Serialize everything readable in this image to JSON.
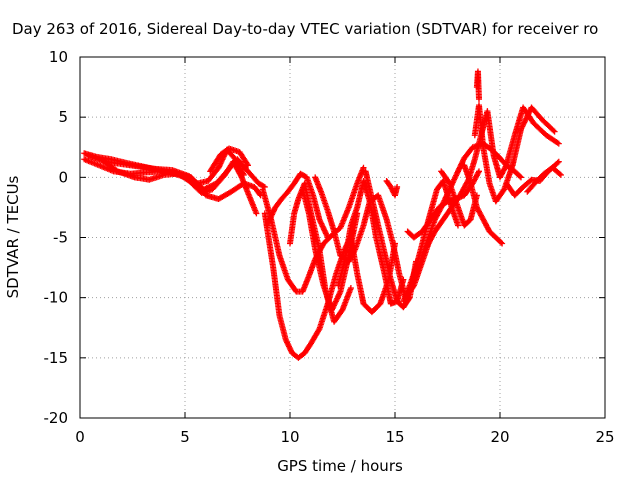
{
  "chart_data": {
    "type": "scatter",
    "title": "Day 263 of 2016, Sidereal Day-to-day VTEC variation (SDTVAR) for receiver ro",
    "xlabel": "GPS time / hours",
    "ylabel": "SDTVAR / TECUs",
    "xlim": [
      0,
      25
    ],
    "ylim": [
      -20,
      10
    ],
    "xticks": [
      0,
      5,
      10,
      15,
      20,
      25
    ],
    "yticks": [
      -20,
      -15,
      -10,
      -5,
      0,
      5,
      10
    ],
    "xtick_labels": [
      "0",
      "5",
      "10",
      "15",
      "20",
      "25"
    ],
    "ytick_labels": [
      "-20",
      "-15",
      "-10",
      "-5",
      "0",
      "5",
      "10"
    ],
    "grid": true,
    "marker": "plus",
    "color": "#ff0000",
    "series": [
      {
        "x": [
          0.2,
          0.8,
          1.5,
          2.2,
          3.0,
          3.8,
          4.5,
          5.0,
          5.6,
          6.1,
          6.6,
          7.0,
          7.4,
          7.8
        ],
        "y": [
          2.0,
          1.7,
          1.5,
          1.2,
          0.9,
          0.6,
          0.3,
          0.0,
          -0.5,
          -0.3,
          0.8,
          2.3,
          1.5,
          0.2
        ]
      },
      {
        "x": [
          0.2,
          0.9,
          1.6,
          2.4,
          3.1,
          3.9,
          4.6,
          5.2,
          5.8,
          6.3,
          6.9,
          7.3,
          7.7,
          8.0,
          8.4
        ],
        "y": [
          1.5,
          1.0,
          0.5,
          0.3,
          0.4,
          0.5,
          0.4,
          -0.3,
          -1.3,
          -1.0,
          0.2,
          1.3,
          0.0,
          -1.3,
          -3.0
        ]
      },
      {
        "x": [
          0.4,
          1.2,
          2.0,
          2.8,
          3.6,
          4.4,
          5.2,
          5.9,
          6.5,
          7.0,
          7.5,
          8.0,
          8.5,
          8.8
        ],
        "y": [
          1.8,
          1.3,
          1.1,
          0.9,
          0.7,
          0.6,
          0.1,
          -1.0,
          -0.5,
          0.5,
          1.5,
          0.5,
          -0.5,
          -0.8
        ]
      },
      {
        "x": [
          1.0,
          1.8,
          2.6,
          3.3,
          4.0,
          4.6,
          5.3,
          6.0,
          6.6,
          7.2,
          7.8,
          8.3,
          8.6
        ],
        "y": [
          1.5,
          0.5,
          0.0,
          -0.2,
          0.2,
          0.3,
          0.0,
          -1.5,
          -1.8,
          -1.2,
          -0.5,
          -0.8,
          -1.5
        ]
      },
      {
        "x": [
          6.2,
          6.7,
          7.1,
          7.6,
          8.0
        ],
        "y": [
          0.5,
          1.9,
          2.4,
          2.1,
          1.0
        ]
      },
      {
        "x": [
          8.8,
          9.2,
          9.5,
          9.8,
          10.1,
          10.4,
          10.7,
          11.0,
          11.4,
          11.8,
          12.2,
          12.6,
          13.0
        ],
        "y": [
          -3.0,
          -7.5,
          -11.5,
          -13.5,
          -14.6,
          -15.0,
          -14.6,
          -13.8,
          -12.6,
          -10.5,
          -8.0,
          -6.0,
          -4.5
        ]
      },
      {
        "x": [
          8.9,
          9.3,
          9.6,
          9.9,
          10.2,
          10.5,
          10.8,
          11.1,
          11.4,
          11.8
        ],
        "y": [
          -4.0,
          -2.5,
          -1.8,
          -1.2,
          -0.5,
          0.3,
          0.0,
          -1.5,
          -3.5,
          -5.0
        ]
      },
      {
        "x": [
          8.7,
          9.1,
          9.5,
          9.9,
          10.3,
          10.6,
          10.9,
          11.2,
          11.6,
          12.0,
          12.4,
          12.8,
          13.2,
          13.5
        ],
        "y": [
          -1.0,
          -3.5,
          -6.5,
          -8.5,
          -9.5,
          -9.5,
          -8.2,
          -6.8,
          -5.5,
          -4.8,
          -4.2,
          -2.5,
          -0.5,
          0.8
        ]
      },
      {
        "x": [
          10.0,
          10.2,
          10.4,
          10.7,
          11.0,
          11.4,
          11.7,
          12.1,
          12.5,
          12.9
        ],
        "y": [
          -5.5,
          -3.0,
          -1.8,
          -0.5,
          -3.0,
          -6.0,
          -9.5,
          -12.0,
          -11.0,
          -9.2
        ]
      },
      {
        "x": [
          10.6,
          10.9,
          11.2,
          11.6,
          12.0,
          12.4,
          12.8,
          13.2
        ],
        "y": [
          -1.0,
          -3.0,
          -6.0,
          -9.0,
          -11.0,
          -9.5,
          -6.5,
          -3.0
        ]
      },
      {
        "x": [
          11.2,
          11.5,
          11.8,
          12.1,
          12.4,
          12.8,
          13.1,
          13.5,
          13.8,
          14.2,
          14.6,
          14.9,
          15.2,
          15.5,
          15.9,
          16.3,
          16.7
        ],
        "y": [
          0.0,
          -1.3,
          -2.8,
          -4.5,
          -6.5,
          -7.0,
          -6.0,
          -4.0,
          -2.0,
          -1.5,
          -3.5,
          -5.5,
          -8.0,
          -10.0,
          -9.0,
          -7.0,
          -5.0
        ]
      },
      {
        "x": [
          12.3,
          12.6,
          12.9,
          13.2,
          13.5,
          13.8,
          14.1,
          14.5,
          14.8,
          15.1,
          15.4
        ],
        "y": [
          -9.0,
          -7.0,
          -4.0,
          -2.5,
          -0.3,
          -2.0,
          -5.0,
          -8.0,
          -10.5,
          -10.3,
          -8.5
        ]
      },
      {
        "x": [
          13.6,
          14.0,
          14.4,
          14.8,
          15.1,
          15.4,
          15.7,
          16.0
        ],
        "y": [
          0.5,
          -2.5,
          -5.5,
          -8.5,
          -10.3,
          -10.8,
          -10.0,
          -7.0
        ]
      },
      {
        "x": [
          12.9,
          13.2,
          13.5,
          13.9,
          14.3,
          14.7,
          15.0
        ],
        "y": [
          -5.0,
          -8.0,
          -10.5,
          -11.2,
          -10.5,
          -8.5,
          -5.5
        ]
      },
      {
        "x": [
          14.6,
          14.8,
          15.0,
          15.1
        ],
        "y": [
          -0.3,
          -0.8,
          -1.5,
          -0.8
        ]
      },
      {
        "x": [
          15.4,
          15.7,
          16.0,
          16.3,
          16.6,
          17.0,
          17.3,
          17.6,
          18.0
        ],
        "y": [
          -10.3,
          -9.0,
          -7.5,
          -5.5,
          -3.5,
          -1.0,
          -0.3,
          -2.0,
          -4.0
        ]
      },
      {
        "x": [
          15.6,
          15.9,
          16.3,
          16.7,
          17.1,
          17.5,
          17.9,
          18.3,
          18.7,
          19.0
        ],
        "y": [
          -4.5,
          -5.0,
          -4.5,
          -3.5,
          -2.5,
          -2.0,
          -1.8,
          -1.5,
          -0.5,
          0.5
        ]
      },
      {
        "x": [
          16.0,
          16.3,
          16.6,
          16.9,
          17.2,
          17.6,
          18.0,
          18.3,
          18.7,
          19.2,
          19.6,
          20.0,
          20.3,
          20.7,
          21.0
        ],
        "y": [
          -8.5,
          -6.5,
          -5.0,
          -3.5,
          -2.5,
          -1.0,
          0.5,
          1.6,
          2.5,
          2.8,
          2.3,
          1.6,
          1.0,
          0.5,
          0.0
        ]
      },
      {
        "x": [
          16.5,
          16.9,
          17.3,
          17.7,
          18.1,
          18.5,
          18.8,
          19.1,
          19.4,
          19.7,
          20.0,
          20.3,
          20.7,
          21.1,
          21.6,
          22.2,
          22.8
        ],
        "y": [
          -5.8,
          -4.5,
          -3.5,
          -2.5,
          -1.5,
          -0.2,
          1.5,
          3.5,
          5.5,
          1.8,
          0.0,
          1.0,
          3.5,
          5.8,
          4.5,
          3.5,
          2.8
        ]
      },
      {
        "x": [
          17.2,
          17.6,
          18.0,
          18.3,
          18.6,
          18.9
        ],
        "y": [
          0.5,
          -0.5,
          -2.5,
          -4.0,
          -3.5,
          -1.5
        ]
      },
      {
        "x": [
          18.3,
          18.6,
          18.9,
          19.2,
          19.5,
          19.8,
          20.1
        ],
        "y": [
          1.0,
          -0.5,
          -2.5,
          -3.5,
          -4.5,
          -5.0,
          -5.5
        ]
      },
      {
        "x": [
          18.8,
          19.0,
          19.2,
          19.5,
          19.8,
          20.2,
          20.6,
          21.0,
          21.5,
          22.0,
          22.6
        ],
        "y": [
          3.5,
          6.0,
          2.5,
          -0.5,
          -2.0,
          -1.0,
          1.0,
          4.0,
          5.8,
          4.8,
          3.8
        ]
      },
      {
        "x": [
          20.3,
          20.7,
          21.1,
          21.5,
          21.9,
          22.3,
          22.8
        ],
        "y": [
          -0.5,
          -1.5,
          -0.8,
          -0.2,
          -0.3,
          0.5,
          1.3
        ]
      },
      {
        "x": [
          21.3,
          21.7,
          22.1,
          22.5,
          22.9
        ],
        "y": [
          -1.2,
          -0.4,
          0.3,
          0.8,
          0.2
        ]
      },
      {
        "x": [
          18.9,
          18.95,
          19.0
        ],
        "y": [
          7.5,
          8.8,
          6.5
        ]
      }
    ]
  }
}
